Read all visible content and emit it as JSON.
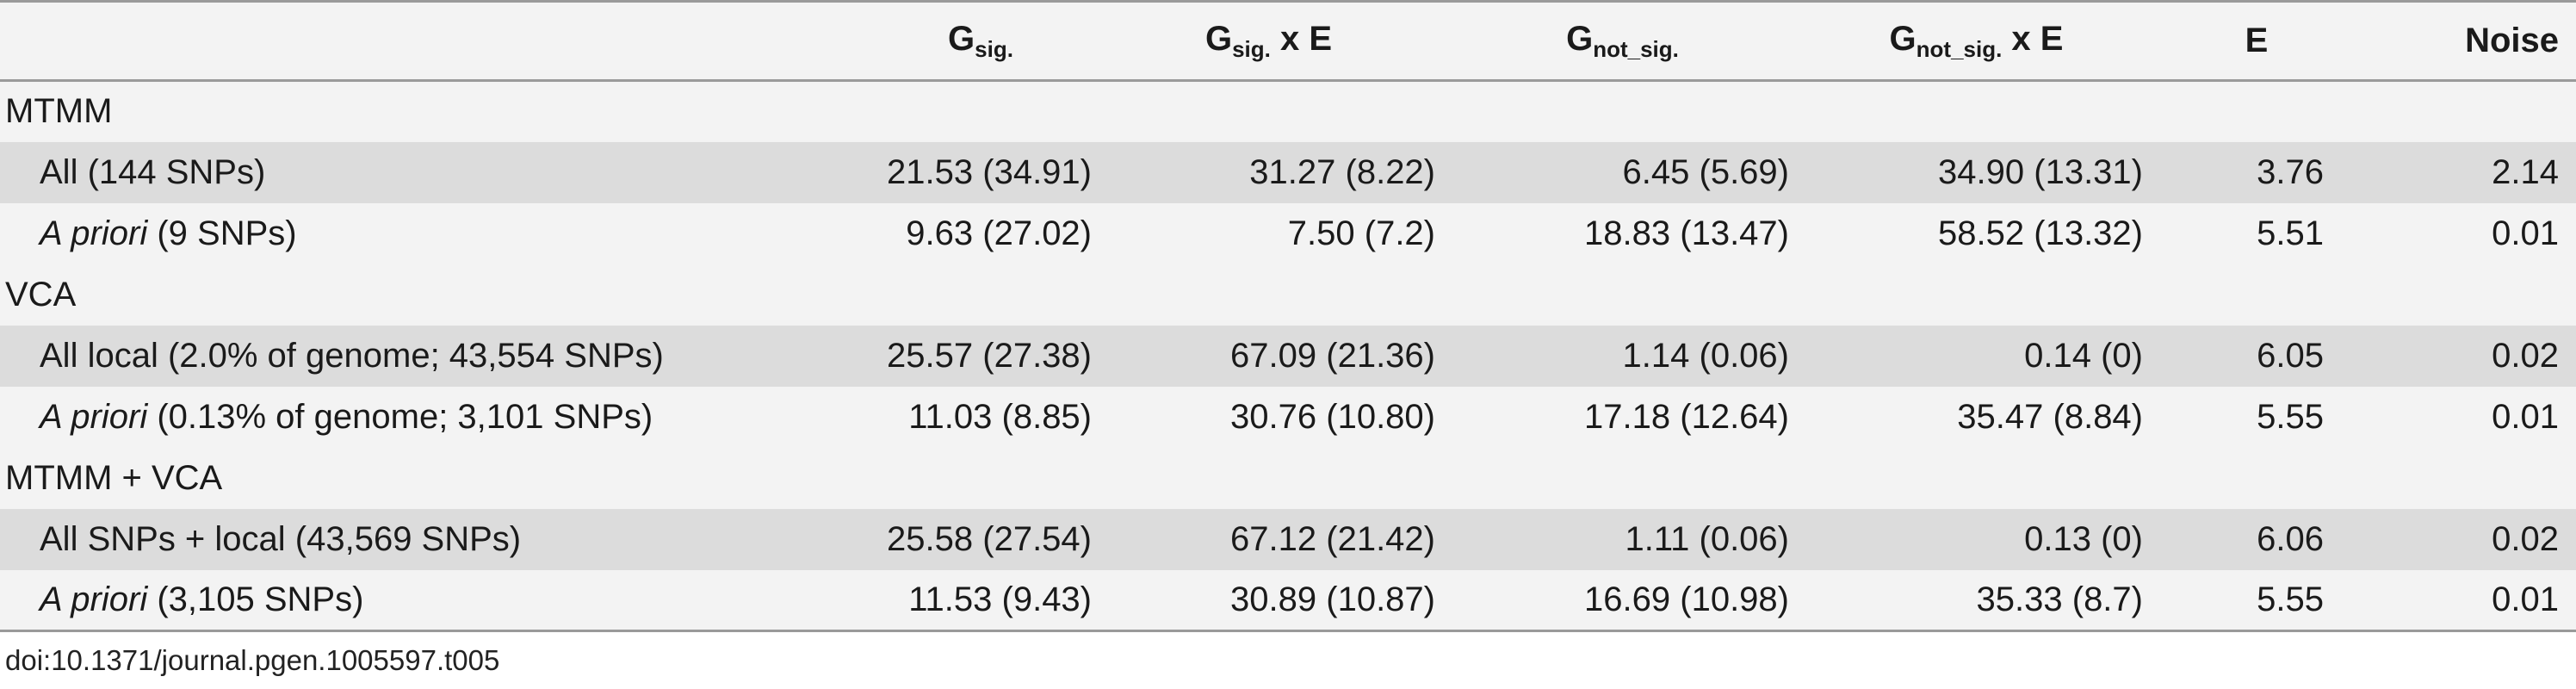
{
  "table": {
    "headers": [
      {
        "base": "",
        "sub": "",
        "suffix": ""
      },
      {
        "base": "G",
        "sub": "sig.",
        "suffix": ""
      },
      {
        "base": "G",
        "sub": "sig.",
        "suffix": " x E"
      },
      {
        "base": "G",
        "sub": "not_sig.",
        "suffix": ""
      },
      {
        "base": "G",
        "sub": "not_sig.",
        "suffix": " x E"
      },
      {
        "base": "E",
        "sub": "",
        "suffix": ""
      },
      {
        "base": "Noise",
        "sub": "",
        "suffix": ""
      }
    ],
    "sections": [
      {
        "title": "MTMM",
        "rows": [
          {
            "label_italic": "",
            "label_rest": "All (144 SNPs)",
            "values": [
              "21.53 (34.91)",
              "31.27 (8.22)",
              "6.45 (5.69)",
              "34.90 (13.31)",
              "3.76",
              "2.14"
            ]
          },
          {
            "label_italic": "A priori",
            "label_rest": " (9 SNPs)",
            "values": [
              "9.63 (27.02)",
              "7.50 (7.2)",
              "18.83 (13.47)",
              "58.52 (13.32)",
              "5.51",
              "0.01"
            ]
          }
        ]
      },
      {
        "title": "VCA",
        "rows": [
          {
            "label_italic": "",
            "label_rest": "All local (2.0% of genome; 43,554 SNPs)",
            "values": [
              "25.57 (27.38)",
              "67.09 (21.36)",
              "1.14 (0.06)",
              "0.14 (0)",
              "6.05",
              "0.02"
            ]
          },
          {
            "label_italic": "A priori",
            "label_rest": " (0.13% of genome; 3,101 SNPs)",
            "values": [
              "11.03 (8.85)",
              "30.76 (10.80)",
              "17.18 (12.64)",
              "35.47 (8.84)",
              "5.55",
              "0.01"
            ]
          }
        ]
      },
      {
        "title": "MTMM + VCA",
        "rows": [
          {
            "label_italic": "",
            "label_rest": "All SNPs + local (43,569 SNPs)",
            "values": [
              "25.58 (27.54)",
              "67.12 (21.42)",
              "1.11 (0.06)",
              "0.13 (0)",
              "6.06",
              "0.02"
            ]
          },
          {
            "label_italic": "A priori",
            "label_rest": " (3,105 SNPs)",
            "values": [
              "11.53 (9.43)",
              "30.89 (10.87)",
              "16.69 (10.98)",
              "35.33 (8.7)",
              "5.55",
              "0.01"
            ]
          }
        ]
      }
    ]
  },
  "doi": "doi:10.1371/journal.pgen.1005597.t005"
}
